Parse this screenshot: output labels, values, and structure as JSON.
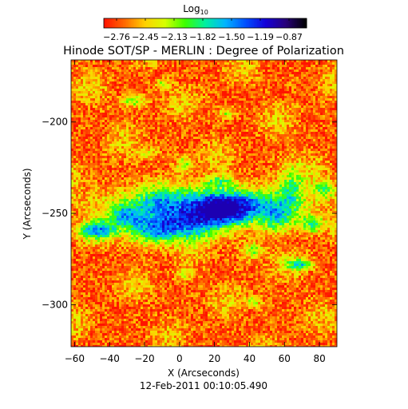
{
  "colorbar": {
    "label": "Log",
    "label_subscript": "10",
    "ticks": [
      "-2.76",
      "-2.45",
      "-2.13",
      "-1.82",
      "-1.50",
      "-1.19",
      "-0.87"
    ],
    "range": [
      -2.76,
      -0.87
    ],
    "colormap": [
      "#ff1400",
      "#ff6a00",
      "#ffd000",
      "#d6ff00",
      "#3cff00",
      "#00f0a0",
      "#00b4ff",
      "#0050ff",
      "#1400d8",
      "#28007a",
      "#000000"
    ]
  },
  "title": "Hinode SOT/SP - MERLIN : Degree of Polarization",
  "axes": {
    "xlabel": "X (Arcseconds)",
    "ylabel": "Y (Arcseconds)",
    "xticks": [
      "-60",
      "-40",
      "-20",
      "0",
      "20",
      "40",
      "60",
      "80"
    ],
    "yticks": [
      "-200",
      "-250",
      "-300"
    ],
    "xlim": [
      -62,
      90
    ],
    "ylim": [
      -323,
      -166
    ]
  },
  "timestamp": "12-Feb-2011 00:10:05.490"
}
